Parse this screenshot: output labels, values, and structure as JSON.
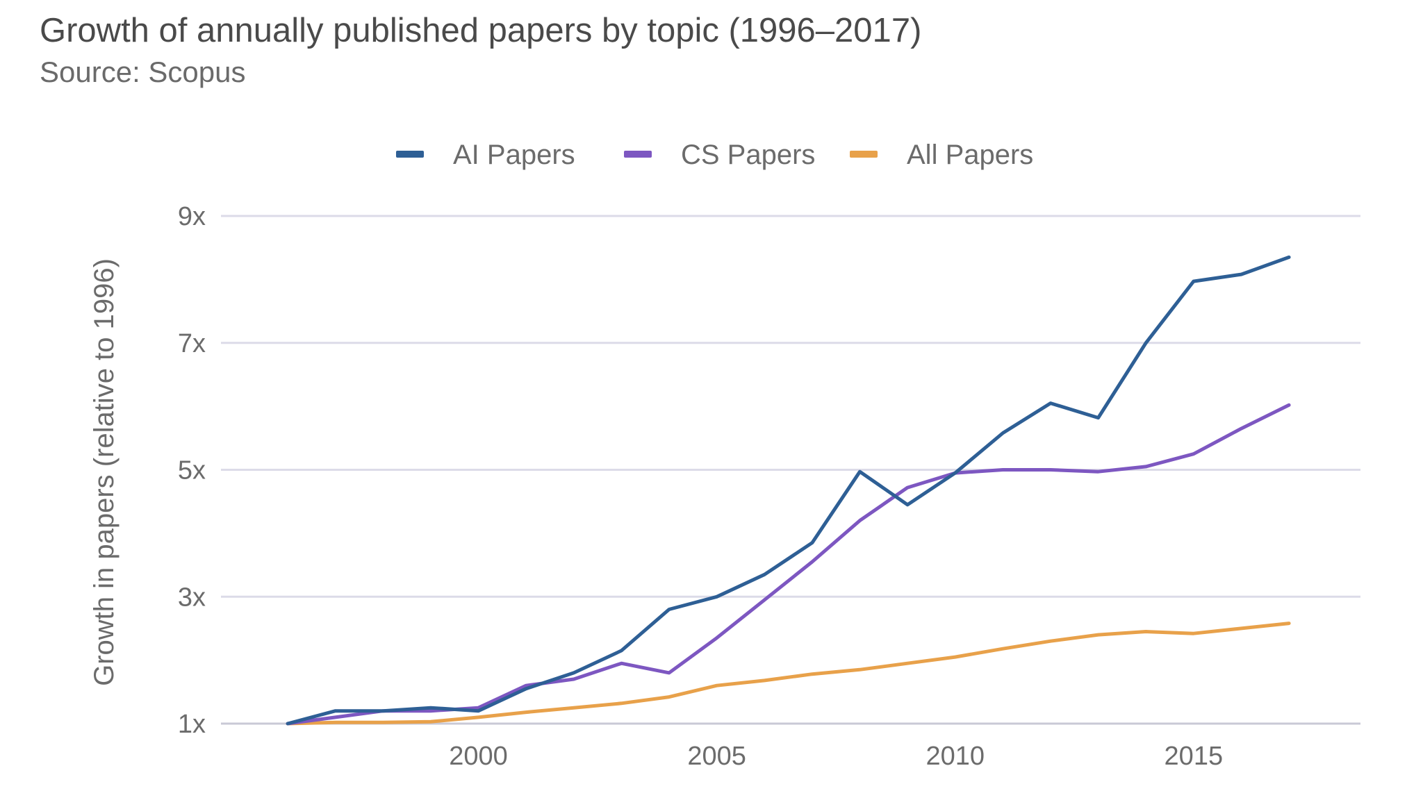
{
  "chart_data": {
    "type": "line",
    "title": "Growth of annually published papers by topic (1996–2017)",
    "subtitle": "Source: Scopus",
    "xlabel": "",
    "ylabel": "Growth in papers (relative to 1996)",
    "x": [
      1996,
      1997,
      1998,
      1999,
      2000,
      2001,
      2002,
      2003,
      2004,
      2005,
      2006,
      2007,
      2008,
      2009,
      2010,
      2011,
      2012,
      2013,
      2014,
      2015,
      2016,
      2017
    ],
    "xlim": [
      1994.6,
      2018.5
    ],
    "ylim": [
      1,
      9
    ],
    "x_ticks": [
      2000,
      2005,
      2010,
      2015
    ],
    "x_tick_labels": [
      "2000",
      "2005",
      "2010",
      "2015"
    ],
    "y_ticks": [
      1,
      3,
      5,
      7,
      9
    ],
    "y_tick_labels": [
      "1x",
      "3x",
      "5x",
      "7x",
      "9x"
    ],
    "grid": true,
    "legend_position": "top",
    "series": [
      {
        "name": "AI Papers",
        "color": "#2e5f95",
        "values": [
          1.0,
          1.2,
          1.2,
          1.25,
          1.2,
          1.55,
          1.8,
          2.15,
          2.8,
          3.0,
          3.35,
          3.85,
          4.97,
          4.45,
          4.95,
          5.58,
          6.05,
          5.82,
          7.0,
          7.97,
          8.08,
          8.35
        ]
      },
      {
        "name": "CS Papers",
        "color": "#7d57c1",
        "values": [
          1.0,
          1.1,
          1.2,
          1.2,
          1.25,
          1.6,
          1.7,
          1.95,
          1.8,
          2.35,
          2.95,
          3.55,
          4.2,
          4.72,
          4.95,
          5.0,
          5.0,
          4.97,
          5.05,
          5.25,
          5.65,
          6.02
        ]
      },
      {
        "name": "All Papers",
        "color": "#e8a14a",
        "values": [
          1.0,
          1.02,
          1.02,
          1.03,
          1.1,
          1.18,
          1.25,
          1.32,
          1.42,
          1.6,
          1.68,
          1.78,
          1.85,
          1.95,
          2.05,
          2.18,
          2.3,
          2.4,
          2.45,
          2.42,
          2.5,
          2.58
        ]
      }
    ]
  }
}
